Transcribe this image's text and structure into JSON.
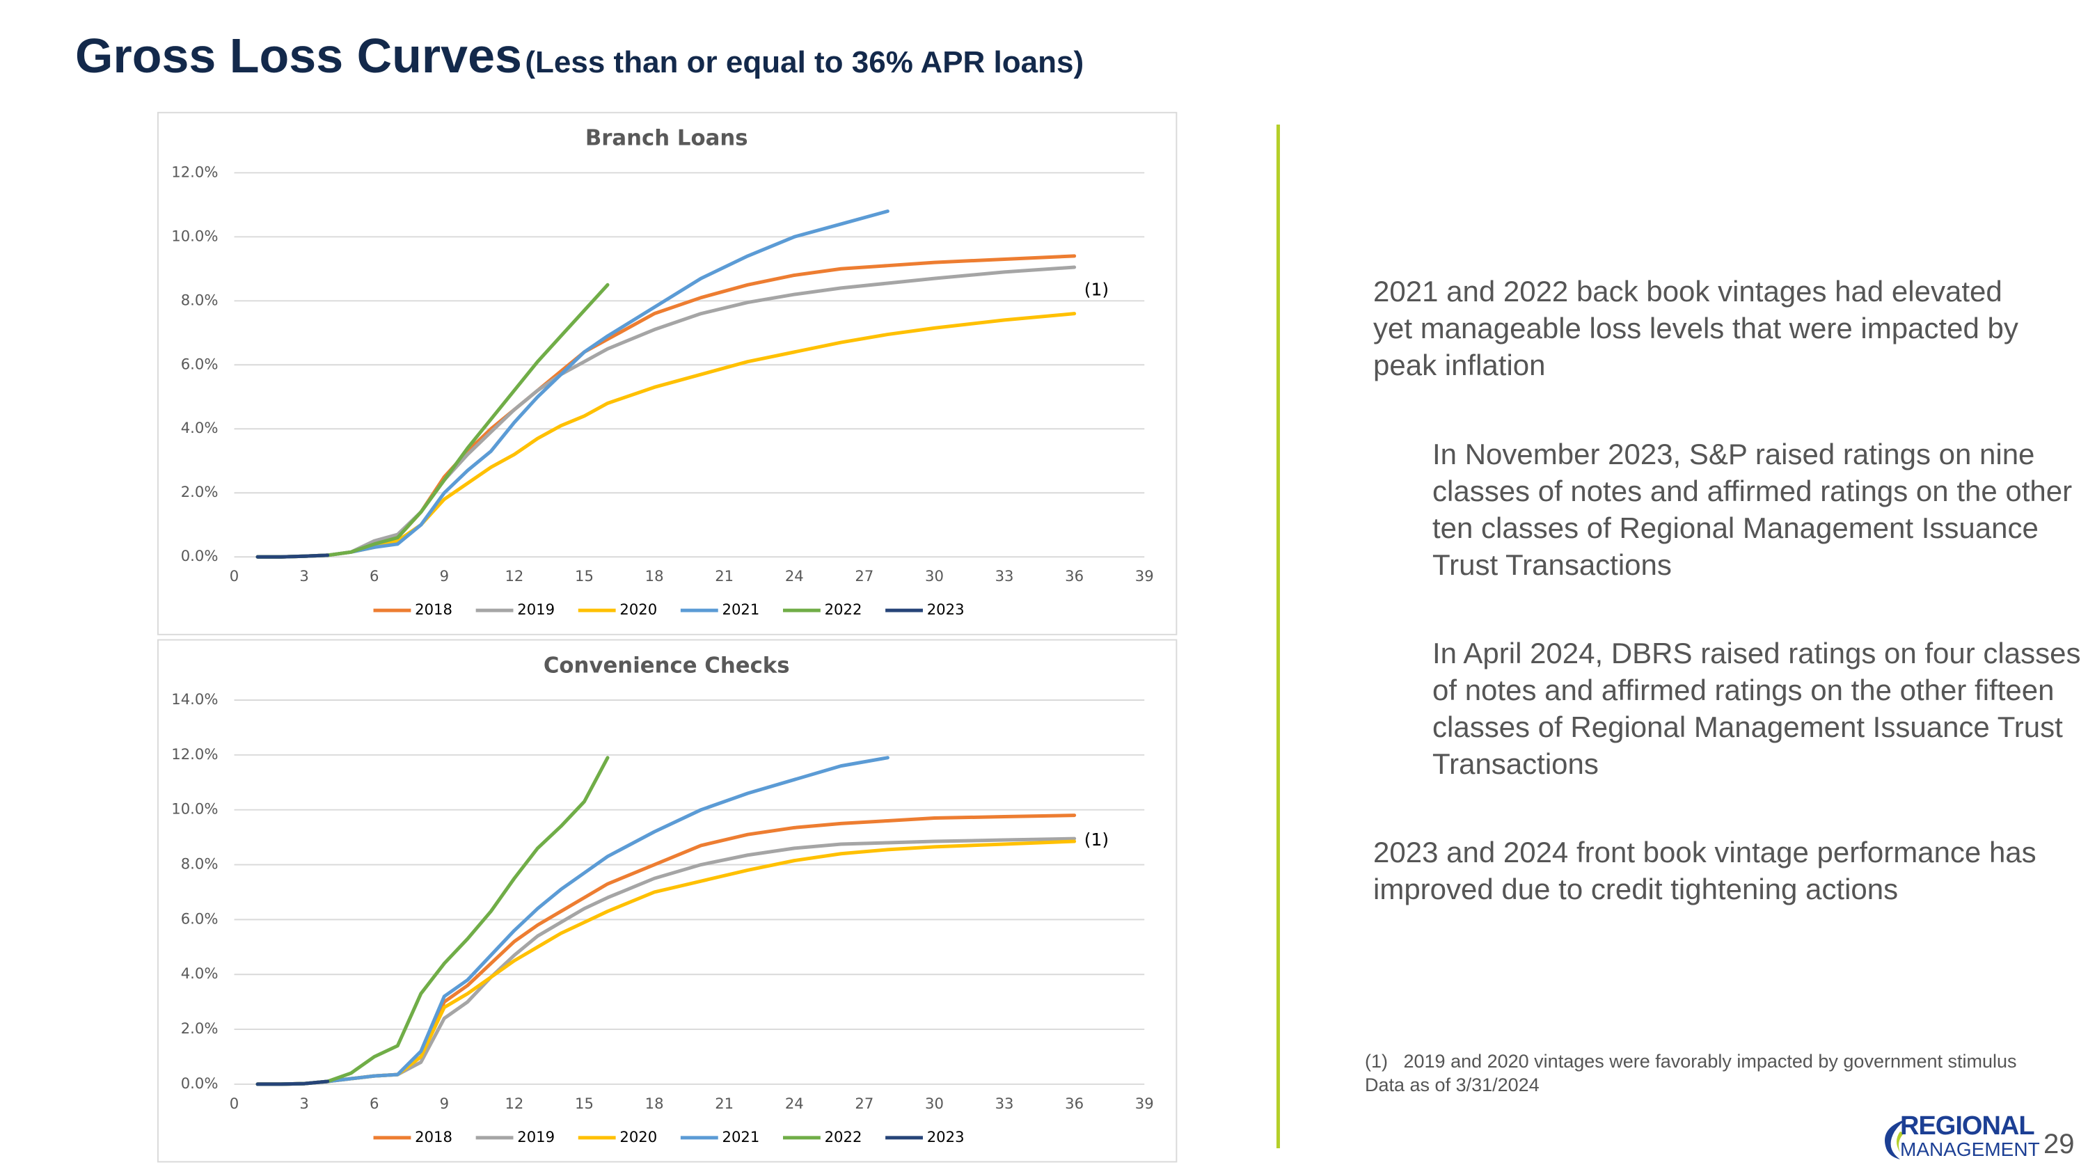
{
  "slide": {
    "title": "Gross Loss Curves",
    "subtitle": "(Less than or equal to 36% APR loans)",
    "paragraphs": [
      "2021 and 2022 back book vintages had elevated yet manageable loss levels that were impacted by peak inflation",
      "In November 2023, S&P raised ratings on nine classes of notes and affirmed ratings on the other ten classes of Regional Management Issuance Trust Transactions",
      "In April 2024, DBRS raised ratings on four classes of notes and affirmed ratings on the other fifteen classes of Regional Management Issuance Trust Transactions",
      "2023 and 2024 front book vintage performance has improved due to credit tightening actions"
    ],
    "footnote": "(1)   2019 and 2020 vintages were favorably impacted by government stimulus",
    "data_note": "Data as of 3/31/2024",
    "logo_top": "REGIONAL",
    "logo_bottom": "MANAGEMENT",
    "page_number": "29"
  },
  "chart_data": [
    {
      "type": "line",
      "title": "Branch Loans",
      "annotation": "(1)",
      "x": [
        1,
        2,
        3,
        4,
        5,
        6,
        7,
        8,
        9,
        10,
        11,
        12,
        13,
        14,
        15,
        16,
        18,
        20,
        22,
        24,
        26,
        28,
        30,
        33,
        36
      ],
      "xlim": [
        0,
        39
      ],
      "xticks": [
        0,
        3,
        6,
        9,
        12,
        15,
        18,
        21,
        24,
        27,
        30,
        33,
        36,
        39
      ],
      "ylim": [
        0,
        12
      ],
      "yticks": [
        {
          "value": 0,
          "label": "0.0%"
        },
        {
          "value": 2,
          "label": "2.0%"
        },
        {
          "value": 4,
          "label": "4.0%"
        },
        {
          "value": 6,
          "label": "6.0%"
        },
        {
          "value": 8,
          "label": "8.0%"
        },
        {
          "value": 10,
          "label": "10.0%"
        },
        {
          "value": 12,
          "label": "12.0%"
        }
      ],
      "grid": true,
      "series": [
        {
          "name": "2018",
          "color": "#ed7d31",
          "values": [
            0,
            0,
            0.02,
            0.05,
            0.15,
            0.4,
            0.6,
            1.4,
            2.5,
            3.3,
            4.0,
            4.6,
            5.2,
            5.8,
            6.4,
            6.8,
            7.6,
            8.1,
            8.5,
            8.8,
            9.0,
            9.1,
            9.2,
            9.3,
            9.4
          ]
        },
        {
          "name": "2019",
          "color": "#a5a5a5",
          "values": [
            0,
            0,
            0.02,
            0.05,
            0.15,
            0.5,
            0.7,
            1.4,
            2.4,
            3.2,
            3.9,
            4.6,
            5.2,
            5.7,
            6.1,
            6.5,
            7.1,
            7.6,
            7.95,
            8.2,
            8.4,
            8.55,
            8.7,
            8.9,
            9.05
          ]
        },
        {
          "name": "2020",
          "color": "#ffc000",
          "values": [
            0,
            0,
            0.02,
            0.05,
            0.15,
            0.3,
            0.5,
            1.0,
            1.8,
            2.3,
            2.8,
            3.2,
            3.7,
            4.1,
            4.4,
            4.8,
            5.3,
            5.7,
            6.1,
            6.4,
            6.7,
            6.95,
            7.15,
            7.4,
            7.6
          ]
        },
        {
          "name": "2021",
          "color": "#5b9bd5",
          "values": [
            0,
            0,
            0.02,
            0.05,
            0.15,
            0.3,
            0.4,
            1.0,
            2.0,
            2.7,
            3.3,
            4.2,
            5.0,
            5.7,
            6.4,
            6.9,
            7.8,
            8.7,
            9.4,
            10.0,
            10.4,
            10.8,
            null,
            null,
            null
          ]
        },
        {
          "name": "2022",
          "color": "#70ad47",
          "values": [
            0,
            0,
            0.02,
            0.05,
            0.15,
            0.4,
            0.6,
            1.4,
            2.4,
            3.4,
            4.3,
            5.2,
            6.1,
            6.9,
            7.7,
            8.5,
            null,
            null,
            null,
            null,
            null,
            null,
            null,
            null,
            null
          ]
        },
        {
          "name": "2023",
          "color": "#264478",
          "values": [
            0,
            0,
            0.02,
            0.05,
            null,
            null,
            null,
            null,
            null,
            null,
            null,
            null,
            null,
            null,
            null,
            null,
            null,
            null,
            null,
            null,
            null,
            null,
            null,
            null,
            null
          ]
        }
      ]
    },
    {
      "type": "line",
      "title": "Convenience Checks",
      "annotation": "(1)",
      "x": [
        1,
        2,
        3,
        4,
        5,
        6,
        7,
        8,
        9,
        10,
        11,
        12,
        13,
        14,
        15,
        16,
        18,
        20,
        22,
        24,
        26,
        28,
        30,
        33,
        36
      ],
      "xlim": [
        0,
        39
      ],
      "xticks": [
        0,
        3,
        6,
        9,
        12,
        15,
        18,
        21,
        24,
        27,
        30,
        33,
        36,
        39
      ],
      "ylim": [
        0,
        14
      ],
      "yticks": [
        {
          "value": 0,
          "label": "0.0%"
        },
        {
          "value": 2,
          "label": "2.0%"
        },
        {
          "value": 4,
          "label": "4.0%"
        },
        {
          "value": 6,
          "label": "6.0%"
        },
        {
          "value": 8,
          "label": "8.0%"
        },
        {
          "value": 10,
          "label": "10.0%"
        },
        {
          "value": 12,
          "label": "12.0%"
        },
        {
          "value": 14,
          "label": "14.0%"
        }
      ],
      "grid": true,
      "series": [
        {
          "name": "2018",
          "color": "#ed7d31",
          "values": [
            0,
            0,
            0.02,
            0.1,
            0.2,
            0.3,
            0.35,
            1.0,
            3.0,
            3.6,
            4.4,
            5.2,
            5.8,
            6.3,
            6.8,
            7.3,
            8.0,
            8.7,
            9.1,
            9.35,
            9.5,
            9.6,
            9.7,
            9.75,
            9.8
          ]
        },
        {
          "name": "2019",
          "color": "#a5a5a5",
          "values": [
            0,
            0,
            0.02,
            0.1,
            0.2,
            0.3,
            0.35,
            0.8,
            2.4,
            3.0,
            3.9,
            4.7,
            5.4,
            5.9,
            6.4,
            6.8,
            7.5,
            8.0,
            8.35,
            8.6,
            8.75,
            8.8,
            8.85,
            8.9,
            8.95
          ]
        },
        {
          "name": "2020",
          "color": "#ffc000",
          "values": [
            0,
            0,
            0.02,
            0.1,
            0.2,
            0.3,
            0.35,
            1.0,
            2.8,
            3.3,
            3.9,
            4.5,
            5.0,
            5.5,
            5.9,
            6.3,
            7.0,
            7.4,
            7.8,
            8.15,
            8.4,
            8.55,
            8.65,
            8.75,
            8.85
          ]
        },
        {
          "name": "2021",
          "color": "#5b9bd5",
          "values": [
            0,
            0,
            0.02,
            0.1,
            0.2,
            0.3,
            0.35,
            1.2,
            3.2,
            3.8,
            4.7,
            5.6,
            6.4,
            7.1,
            7.7,
            8.3,
            9.2,
            10.0,
            10.6,
            11.1,
            11.6,
            11.9,
            null,
            null,
            null
          ]
        },
        {
          "name": "2022",
          "color": "#70ad47",
          "values": [
            0,
            0,
            0.02,
            0.1,
            0.4,
            1.0,
            1.4,
            3.3,
            4.4,
            5.3,
            6.3,
            7.5,
            8.6,
            9.4,
            10.3,
            11.9,
            null,
            null,
            null,
            null,
            null,
            null,
            null,
            null,
            null
          ]
        },
        {
          "name": "2023",
          "color": "#264478",
          "values": [
            0,
            0,
            0.02,
            0.1,
            null,
            null,
            null,
            null,
            null,
            null,
            null,
            null,
            null,
            null,
            null,
            null,
            null,
            null,
            null,
            null,
            null,
            null,
            null,
            null,
            null
          ]
        }
      ]
    }
  ]
}
